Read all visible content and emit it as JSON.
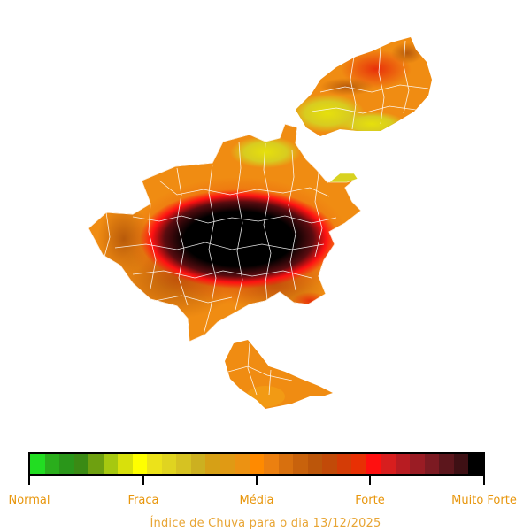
{
  "legend": {
    "colors": [
      "#22dd22",
      "#2aae1c",
      "#2a961a",
      "#3a8a14",
      "#6ea010",
      "#a6c810",
      "#d8e00c",
      "#ffff00",
      "#ece21a",
      "#e0d420",
      "#d6c222",
      "#ccb020",
      "#d6a016",
      "#e09a14",
      "#ec9212",
      "#ff8a00",
      "#ec8010",
      "#d8700e",
      "#c8620c",
      "#bc560a",
      "#c24a08",
      "#d43c06",
      "#e83004",
      "#ff1010",
      "#d81e1e",
      "#b81c22",
      "#9a1c24",
      "#7c1a22",
      "#5c161c",
      "#3e1014",
      "#000000"
    ],
    "labels": [
      "Normal",
      "Fraca",
      "Média",
      "Forte",
      "Muito Forte"
    ]
  },
  "caption": "Índice de Chuva para o dia 13/12/2025"
}
